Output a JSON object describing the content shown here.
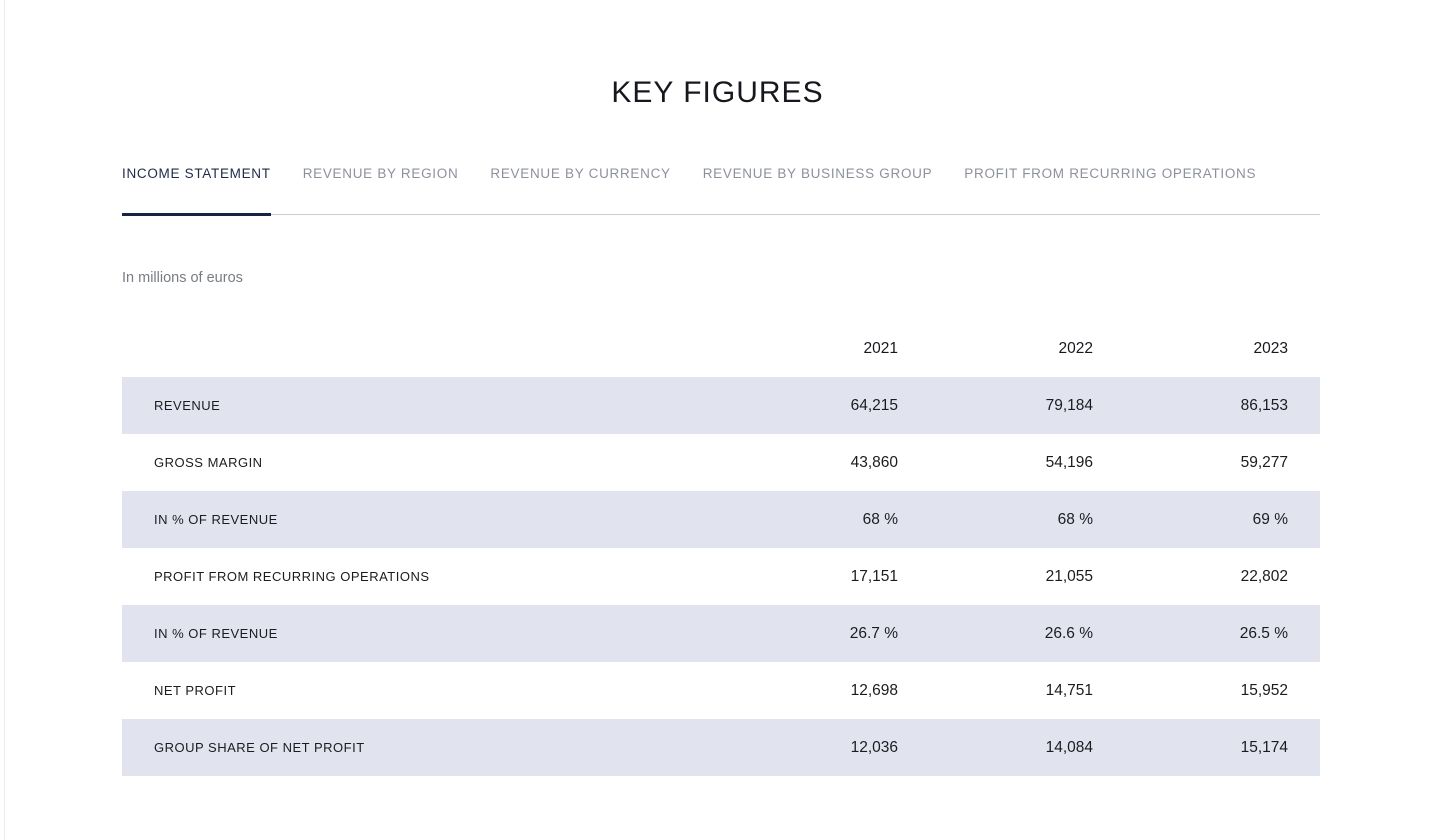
{
  "page": {
    "title": "KEY FIGURES",
    "note": "In millions of euros"
  },
  "tabs": [
    {
      "label": "INCOME STATEMENT",
      "active": true
    },
    {
      "label": "REVENUE BY REGION",
      "active": false
    },
    {
      "label": "REVENUE BY CURRENCY",
      "active": false
    },
    {
      "label": "REVENUE BY BUSINESS GROUP",
      "active": false
    },
    {
      "label": "PROFIT FROM RECURRING OPERATIONS",
      "active": false
    }
  ],
  "table": {
    "years": [
      "2021",
      "2022",
      "2023"
    ],
    "rows": [
      {
        "label": "REVENUE",
        "values": [
          "64,215",
          "79,184",
          "86,153"
        ]
      },
      {
        "label": "GROSS MARGIN",
        "values": [
          "43,860",
          "54,196",
          "59,277"
        ]
      },
      {
        "label": "IN % OF REVENUE",
        "values": [
          "68 %",
          "68 %",
          "69 %"
        ]
      },
      {
        "label": "PROFIT FROM RECURRING OPERATIONS",
        "values": [
          "17,151",
          "21,055",
          "22,802"
        ]
      },
      {
        "label": "IN % OF REVENUE",
        "values": [
          "26.7 %",
          "26.6 %",
          "26.5 %"
        ]
      },
      {
        "label": "NET PROFIT",
        "values": [
          "12,698",
          "14,751",
          "15,952"
        ]
      },
      {
        "label": "GROUP SHARE OF NET PROFIT",
        "values": [
          "12,036",
          "14,084",
          "15,174"
        ]
      }
    ]
  },
  "colors": {
    "text_dark": "#1b1c20",
    "tab_active": "#1d2b47",
    "tab_inactive": "#8d919d",
    "underline_active": "#1a2342",
    "underline_track": "#c9ccd5",
    "note_gray": "#787c83",
    "row_shade": "#e1e4ee",
    "background": "#ffffff"
  }
}
